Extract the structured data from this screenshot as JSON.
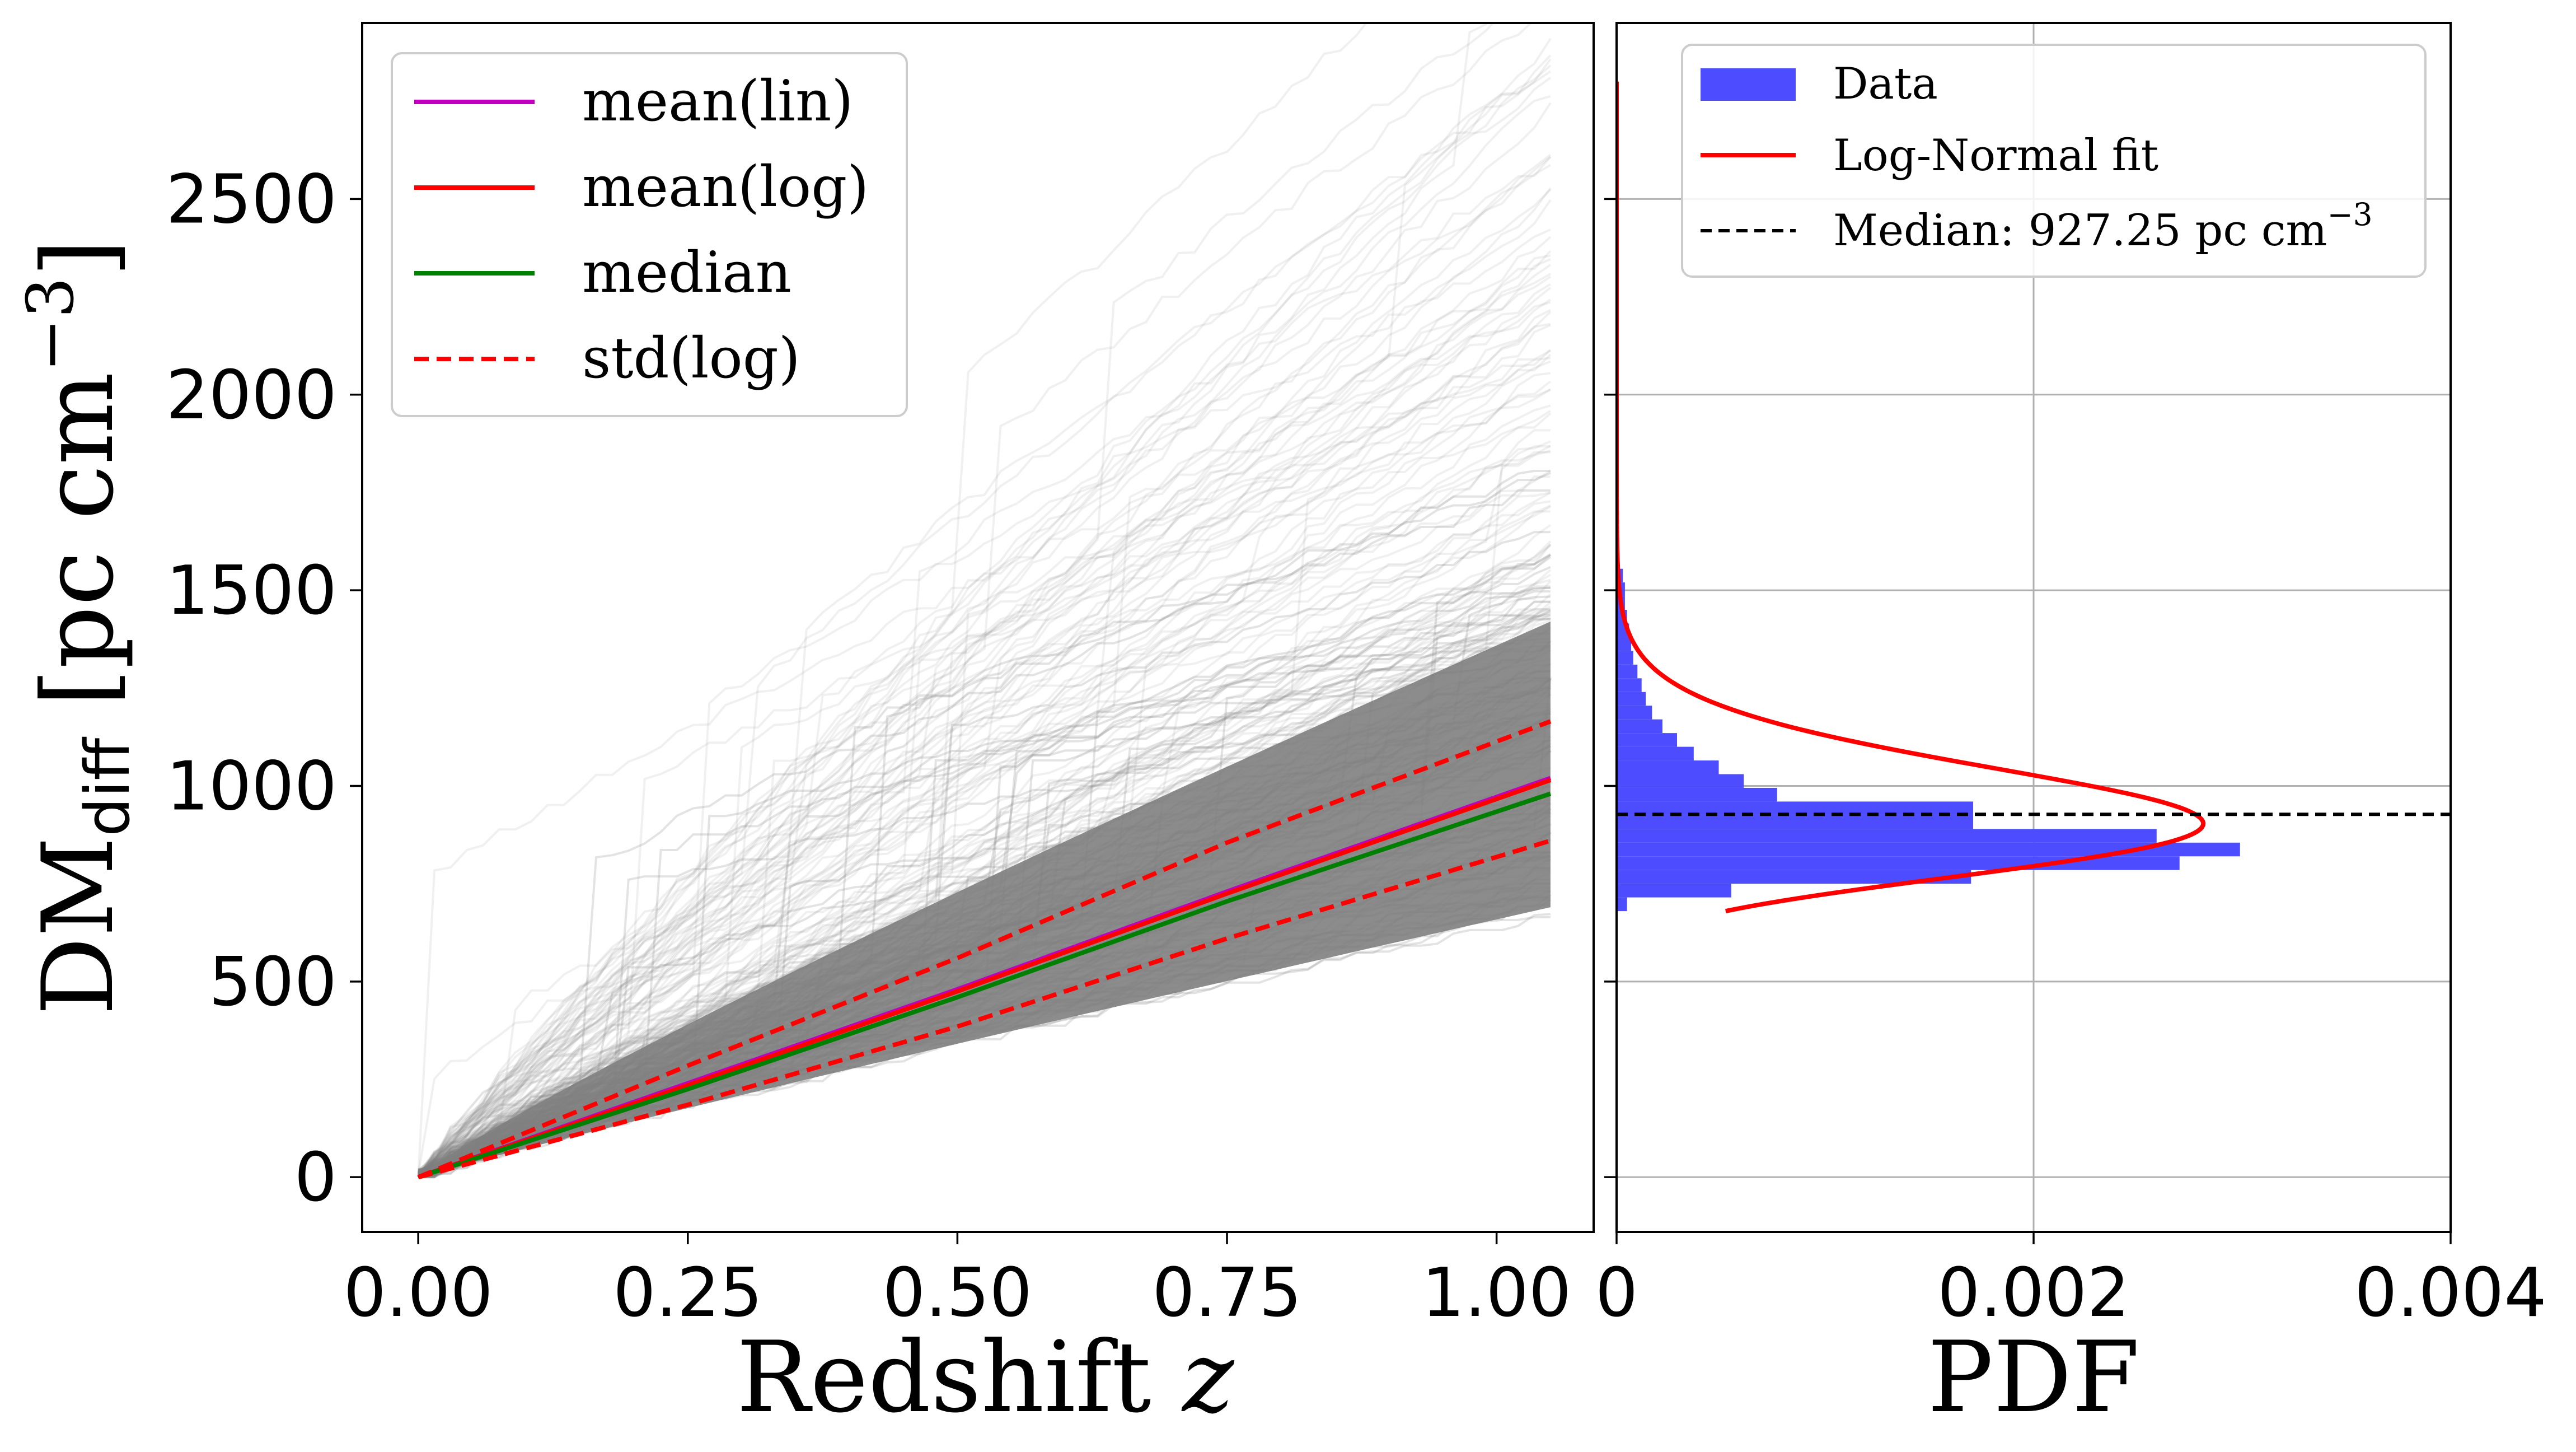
{
  "chart_data": [
    {
      "type": "line",
      "panel": "left",
      "xlabel": "Redshift",
      "xlabel_var": "z",
      "ylabel_main": "DM",
      "ylabel_sub": "diff",
      "ylabel_unit_open": " [pc cm",
      "ylabel_unit_exp": "−3",
      "ylabel_unit_close": "]",
      "xlim": [
        -0.052,
        1.09
      ],
      "ylim": [
        -140,
        2950
      ],
      "x_ticks": [
        0.0,
        0.25,
        0.5,
        0.75,
        1.0
      ],
      "x_tick_labels": [
        "0.00",
        "0.25",
        "0.50",
        "0.75",
        "1.00"
      ],
      "y_ticks": [
        0,
        500,
        1000,
        1500,
        2000,
        2500
      ],
      "y_tick_labels": [
        "0",
        "500",
        "1000",
        "1500",
        "2000",
        "2500"
      ],
      "grid": false,
      "legend_position": "upper-left",
      "background_realizations": {
        "color": "#808080",
        "description_count_shown": 0,
        "x_end": 1.05,
        "end_values": [
          690,
          720,
          740,
          760,
          790,
          820,
          850,
          880,
          910,
          930,
          950,
          980,
          1010,
          1040,
          1070,
          1100,
          1130,
          1160,
          1190,
          1220,
          1250,
          1290,
          1330,
          1380,
          1430,
          1490,
          1560,
          1640,
          1720,
          1820,
          1950,
          2100,
          2250,
          2380,
          2550,
          2800
        ]
      },
      "series": [
        {
          "name": "mean(lin)",
          "color": "#bf00bf",
          "style": "solid",
          "x": [
            0,
            0.25,
            0.5,
            0.75,
            1.05
          ],
          "values": [
            0,
            240,
            480,
            730,
            1020
          ]
        },
        {
          "name": "mean(log)",
          "color": "#ff0000",
          "style": "solid",
          "x": [
            0,
            0.25,
            0.5,
            0.75,
            1.05
          ],
          "values": [
            0,
            235,
            475,
            725,
            1015
          ]
        },
        {
          "name": "median",
          "color": "#008000",
          "style": "solid",
          "x": [
            0,
            0.25,
            0.5,
            0.75,
            1.05
          ],
          "values": [
            0,
            225,
            460,
            705,
            980
          ]
        },
        {
          "name": "std(log)",
          "color": "#ff0000",
          "style": "dashed",
          "x": [
            0,
            0.25,
            0.5,
            0.75,
            1.05
          ],
          "values": [
            0,
            285,
            560,
            855,
            1165
          ]
        },
        {
          "name": "std(log) lower",
          "legend": false,
          "color": "#ff0000",
          "style": "dashed",
          "x": [
            0,
            0.25,
            0.5,
            0.75,
            1.05
          ],
          "values": [
            0,
            185,
            385,
            610,
            860
          ]
        }
      ]
    },
    {
      "type": "bar",
      "orientation": "horizontal",
      "panel": "right",
      "xlabel": "PDF",
      "xlim": [
        0,
        0.004
      ],
      "ylim": [
        -140,
        2950
      ],
      "x_ticks": [
        0,
        0.002,
        0.004
      ],
      "x_tick_labels": [
        "0",
        "0.002",
        "0.004"
      ],
      "grid": true,
      "legend_position": "upper-right",
      "histogram": {
        "name": "Data",
        "color": "#4d4dff",
        "bin_width": 35,
        "bin_edges_start": 680,
        "densities": [
          5e-05,
          0.00055,
          0.0017,
          0.0027,
          0.00299,
          0.00259,
          0.00171,
          0.00171,
          0.00077,
          0.00061,
          0.00049,
          0.00037,
          0.00029,
          0.00022,
          0.00017,
          0.00014,
          0.00012,
          0.0001,
          8e-05,
          7e-05,
          6e-05,
          5e-05,
          4e-05,
          4e-05,
          3e-05
        ]
      },
      "fit": {
        "name": "Log-Normal fit",
        "color": "#ff0000",
        "mu_ln": 6.8305,
        "sigma_ln": 0.155,
        "y_range": [
          680,
          2800
        ]
      },
      "median_line": {
        "name_prefix": "Median: 927.25 pc cm",
        "name_exp": "−3",
        "value": 927.25,
        "color": "#000000",
        "style": "dashed"
      }
    }
  ]
}
